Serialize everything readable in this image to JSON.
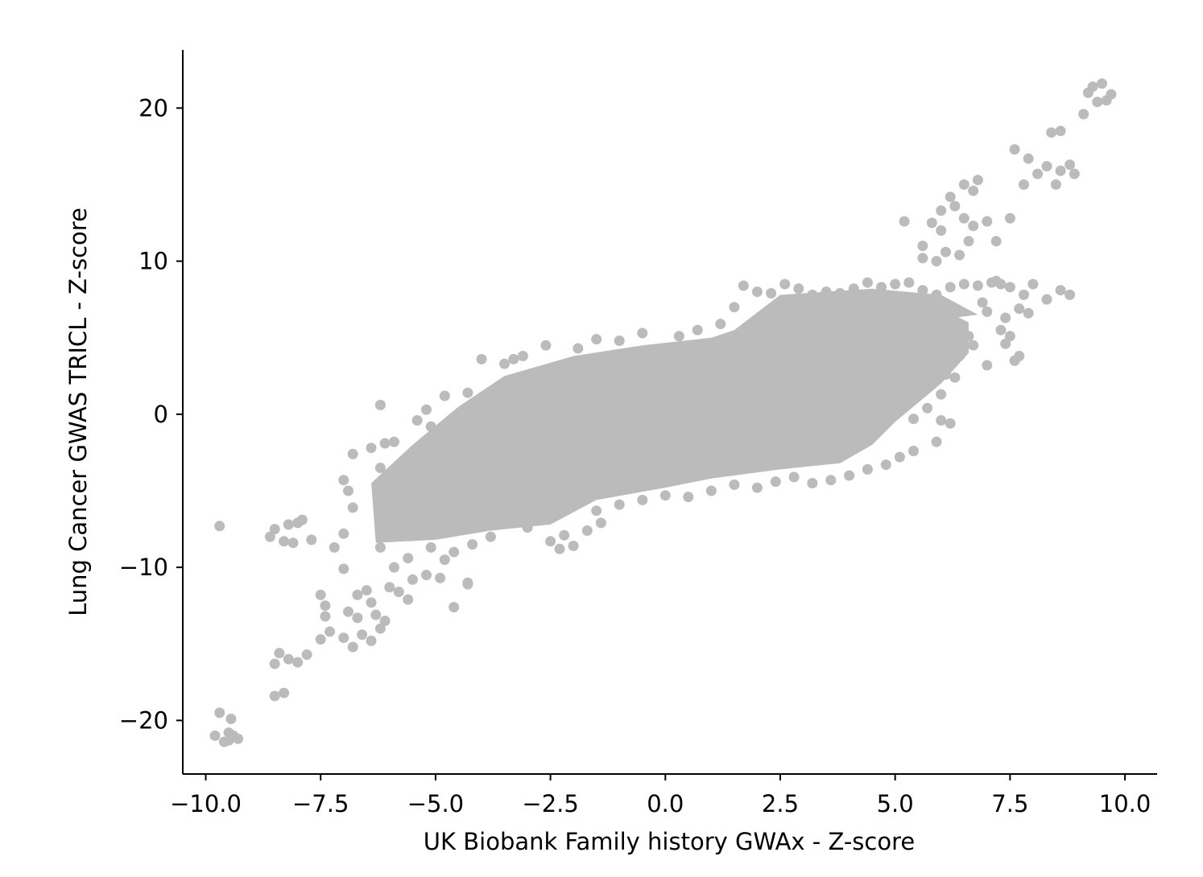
{
  "chart_data": {
    "type": "scatter",
    "xlabel": "UK Biobank Family history GWAx - Z-score",
    "ylabel": "Lung Cancer GWAS TRICL - Z-score",
    "xlim": [
      -10.5,
      10.7
    ],
    "ylim": [
      -23.5,
      23.8
    ],
    "xticks": [
      -10.0,
      -7.5,
      -5.0,
      -2.5,
      0.0,
      2.5,
      5.0,
      7.5,
      10.0
    ],
    "xtick_labels": [
      "−10.0",
      "−7.5",
      "−5.0",
      "−2.5",
      "0.0",
      "2.5",
      "5.0",
      "7.5",
      "10.0"
    ],
    "yticks": [
      -20,
      -10,
      0,
      10,
      20
    ],
    "ytick_labels": [
      "−20",
      "−10",
      "0",
      "10",
      "20"
    ],
    "grid": false,
    "marker_color": "#bbbbbb",
    "spines": [
      "left",
      "bottom"
    ],
    "series": [
      {
        "points": [
          [
            -9.8,
            -21.0
          ],
          [
            -9.7,
            -19.5
          ],
          [
            -9.5,
            -21.3
          ],
          [
            -9.4,
            -21.0
          ],
          [
            -9.6,
            -21.4
          ],
          [
            -9.3,
            -21.2
          ],
          [
            -9.5,
            -20.8
          ],
          [
            -9.45,
            -19.9
          ],
          [
            -9.7,
            -7.3
          ],
          [
            -8.6,
            -8.0
          ],
          [
            -8.5,
            -7.5
          ],
          [
            -8.3,
            -8.3
          ],
          [
            -8.2,
            -7.2
          ],
          [
            -8.1,
            -8.4
          ],
          [
            -8.0,
            -7.1
          ],
          [
            -7.9,
            -6.9
          ],
          [
            -7.7,
            -8.2
          ],
          [
            -8.5,
            -16.3
          ],
          [
            -8.4,
            -15.6
          ],
          [
            -8.2,
            -16.0
          ],
          [
            -8.0,
            -16.2
          ],
          [
            -7.8,
            -15.7
          ],
          [
            -8.5,
            -18.4
          ],
          [
            -8.3,
            -18.2
          ],
          [
            -7.5,
            -14.7
          ],
          [
            -7.3,
            -14.2
          ],
          [
            -7.4,
            -13.2
          ],
          [
            -7.0,
            -14.6
          ],
          [
            -6.8,
            -15.2
          ],
          [
            -6.6,
            -14.4
          ],
          [
            -6.7,
            -13.3
          ],
          [
            -6.9,
            -12.9
          ],
          [
            -6.4,
            -12.3
          ],
          [
            -6.3,
            -13.1
          ],
          [
            -6.5,
            -11.5
          ],
          [
            -6.2,
            -14.0
          ],
          [
            -6.1,
            -13.5
          ],
          [
            -6.4,
            -14.8
          ],
          [
            -6.7,
            -11.8
          ],
          [
            -6.0,
            -11.3
          ],
          [
            -5.8,
            -11.6
          ],
          [
            -5.6,
            -12.1
          ],
          [
            -5.5,
            -10.8
          ],
          [
            -5.2,
            -10.5
          ],
          [
            -4.9,
            -10.7
          ],
          [
            -4.6,
            -12.6
          ],
          [
            -4.3,
            -11.1
          ],
          [
            -5.9,
            -10.0
          ],
          [
            -7.0,
            -10.1
          ],
          [
            -7.4,
            -12.5
          ],
          [
            -7.5,
            -11.8
          ],
          [
            -7.2,
            -8.7
          ],
          [
            -7.0,
            -7.8
          ],
          [
            -6.8,
            -6.1
          ],
          [
            -6.9,
            -5.0
          ],
          [
            -7.0,
            -4.3
          ],
          [
            -6.8,
            -2.6
          ],
          [
            -6.4,
            -2.2
          ],
          [
            -6.2,
            -3.5
          ],
          [
            -6.1,
            -1.9
          ],
          [
            -5.9,
            -1.8
          ],
          [
            -6.2,
            0.6
          ],
          [
            -5.4,
            -0.4
          ],
          [
            -5.2,
            0.3
          ],
          [
            -5.1,
            -0.8
          ],
          [
            -4.8,
            1.2
          ],
          [
            -4.3,
            1.4
          ],
          [
            -4.0,
            3.6
          ],
          [
            -3.5,
            3.3
          ],
          [
            -3.3,
            3.6
          ],
          [
            -3.1,
            3.8
          ],
          [
            -2.6,
            4.5
          ],
          [
            -1.9,
            4.3
          ],
          [
            -1.5,
            4.9
          ],
          [
            -1.0,
            4.8
          ],
          [
            -0.5,
            5.3
          ],
          [
            0.3,
            5.1
          ],
          [
            0.7,
            5.5
          ],
          [
            1.2,
            5.9
          ],
          [
            1.5,
            7.0
          ],
          [
            1.7,
            8.4
          ],
          [
            2.0,
            8.0
          ],
          [
            2.3,
            7.9
          ],
          [
            2.6,
            8.5
          ],
          [
            2.9,
            8.2
          ],
          [
            3.2,
            7.8
          ],
          [
            3.5,
            8.0
          ],
          [
            3.8,
            7.9
          ],
          [
            4.1,
            8.2
          ],
          [
            4.4,
            8.6
          ],
          [
            4.7,
            8.3
          ],
          [
            5.0,
            8.5
          ],
          [
            5.3,
            8.6
          ],
          [
            5.6,
            8.1
          ],
          [
            5.9,
            7.8
          ],
          [
            6.2,
            8.3
          ],
          [
            6.5,
            8.5
          ],
          [
            6.8,
            8.4
          ],
          [
            7.1,
            8.6
          ],
          [
            7.3,
            8.5
          ],
          [
            7.2,
            8.7
          ],
          [
            6.9,
            7.3
          ],
          [
            7.0,
            6.7
          ],
          [
            6.6,
            5.1
          ],
          [
            6.7,
            4.5
          ],
          [
            7.0,
            3.2
          ],
          [
            6.4,
            3.8
          ],
          [
            6.3,
            2.4
          ],
          [
            6.1,
            2.6
          ],
          [
            6.0,
            1.3
          ],
          [
            5.7,
            0.4
          ],
          [
            5.4,
            -0.3
          ],
          [
            6.0,
            -0.4
          ],
          [
            6.2,
            -0.6
          ],
          [
            5.9,
            -1.8
          ],
          [
            5.4,
            -2.4
          ],
          [
            5.1,
            -2.8
          ],
          [
            4.8,
            -3.3
          ],
          [
            4.4,
            -3.6
          ],
          [
            4.0,
            -4.0
          ],
          [
            3.6,
            -4.3
          ],
          [
            3.2,
            -4.5
          ],
          [
            2.8,
            -4.1
          ],
          [
            2.4,
            -4.4
          ],
          [
            2.0,
            -4.8
          ],
          [
            1.5,
            -4.6
          ],
          [
            1.0,
            -5.0
          ],
          [
            0.5,
            -5.4
          ],
          [
            0.0,
            -5.3
          ],
          [
            -0.5,
            -5.6
          ],
          [
            -1.0,
            -5.9
          ],
          [
            -1.5,
            -6.3
          ],
          [
            -2.0,
            -8.6
          ],
          [
            -2.3,
            -8.8
          ],
          [
            -2.5,
            -8.3
          ],
          [
            -2.2,
            -7.9
          ],
          [
            -1.7,
            -7.6
          ],
          [
            -1.4,
            -7.1
          ],
          [
            -3.0,
            -7.4
          ],
          [
            -3.8,
            -8.0
          ],
          [
            -4.2,
            -8.5
          ],
          [
            -4.6,
            -9.0
          ],
          [
            -4.3,
            -11.0
          ],
          [
            -4.8,
            -9.5
          ],
          [
            -5.1,
            -8.7
          ],
          [
            -5.6,
            -9.4
          ],
          [
            -6.2,
            -8.7
          ],
          [
            7.5,
            8.3
          ],
          [
            7.8,
            7.8
          ],
          [
            8.0,
            8.5
          ],
          [
            8.3,
            7.5
          ],
          [
            8.6,
            8.1
          ],
          [
            8.8,
            7.8
          ],
          [
            7.7,
            6.9
          ],
          [
            7.9,
            6.6
          ],
          [
            7.4,
            6.3
          ],
          [
            7.6,
            3.5
          ],
          [
            7.7,
            3.8
          ],
          [
            7.3,
            5.5
          ],
          [
            7.5,
            5.1
          ],
          [
            7.4,
            4.6
          ],
          [
            5.6,
            10.2
          ],
          [
            5.9,
            10.0
          ],
          [
            6.1,
            10.6
          ],
          [
            6.4,
            10.4
          ],
          [
            6.6,
            11.3
          ],
          [
            6.7,
            12.3
          ],
          [
            6.5,
            12.8
          ],
          [
            6.3,
            13.6
          ],
          [
            6.0,
            13.3
          ],
          [
            6.2,
            14.2
          ],
          [
            6.7,
            14.6
          ],
          [
            6.8,
            15.3
          ],
          [
            6.5,
            15.0
          ],
          [
            6.0,
            12.0
          ],
          [
            5.6,
            11.0
          ],
          [
            5.8,
            12.5
          ],
          [
            7.0,
            12.6
          ],
          [
            7.2,
            11.3
          ],
          [
            7.5,
            12.8
          ],
          [
            5.2,
            12.6
          ],
          [
            7.6,
            17.3
          ],
          [
            7.9,
            16.7
          ],
          [
            8.1,
            15.7
          ],
          [
            8.3,
            16.2
          ],
          [
            8.6,
            15.9
          ],
          [
            8.8,
            16.3
          ],
          [
            8.9,
            15.7
          ],
          [
            7.8,
            15.0
          ],
          [
            8.5,
            15.0
          ],
          [
            8.4,
            18.4
          ],
          [
            8.6,
            18.5
          ],
          [
            9.2,
            21.0
          ],
          [
            9.3,
            21.4
          ],
          [
            9.5,
            21.6
          ],
          [
            9.7,
            20.9
          ],
          [
            9.6,
            20.5
          ],
          [
            9.4,
            20.4
          ],
          [
            9.1,
            19.6
          ]
        ]
      }
    ]
  }
}
